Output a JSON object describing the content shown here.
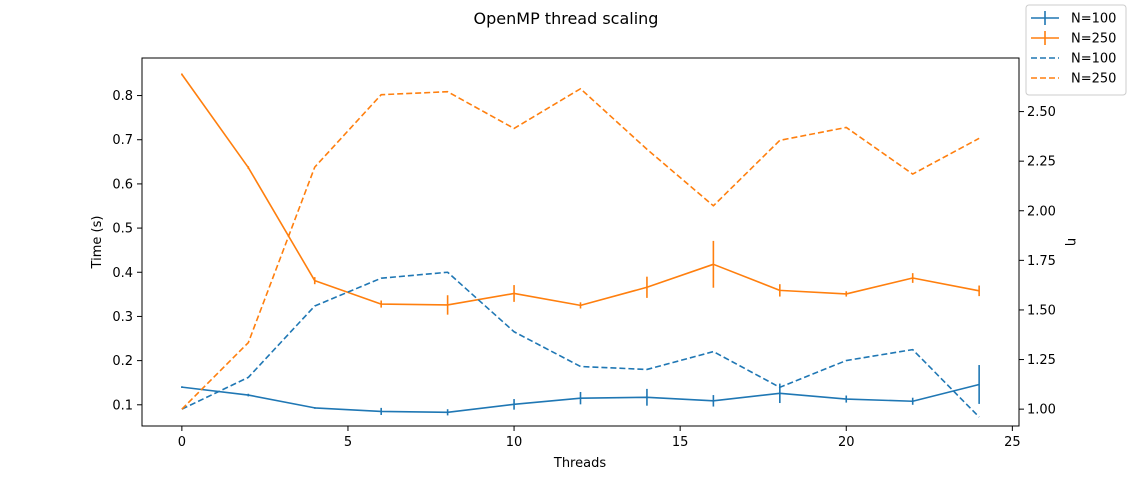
{
  "chart_data": {
    "type": "line",
    "title": "OpenMP thread scaling",
    "xlabel": "Threads",
    "ylabel_left": "Time (s)",
    "ylabel_right": "η",
    "xlim": [
      -1.2,
      25.2
    ],
    "ylim_left": [
      0.052,
      0.885
    ],
    "ylim_right": [
      0.915,
      2.77
    ],
    "x_ticks": [
      0,
      5,
      10,
      15,
      20,
      25
    ],
    "y_ticks_left": [
      0.1,
      0.2,
      0.3,
      0.4,
      0.5,
      0.6,
      0.7,
      0.8
    ],
    "y_ticks_right": [
      1.0,
      1.25,
      1.5,
      1.75,
      2.0,
      2.25,
      2.5
    ],
    "grid": false,
    "legend_position": "top-right",
    "colors": {
      "n100": "#1f77b4",
      "n250": "#ff7f0e"
    },
    "series": [
      {
        "name": "N=100",
        "axis": "left",
        "style": "solid-errorbar",
        "color": "#1f77b4",
        "x": [
          0,
          2,
          4,
          6,
          8,
          10,
          12,
          14,
          16,
          18,
          20,
          22,
          24
        ],
        "y": [
          0.14,
          0.122,
          0.093,
          0.085,
          0.083,
          0.101,
          0.115,
          0.117,
          0.109,
          0.126,
          0.113,
          0.108,
          0.146
        ],
        "yerr": [
          0.002,
          0.003,
          0.002,
          0.008,
          0.007,
          0.012,
          0.014,
          0.019,
          0.013,
          0.022,
          0.008,
          0.008,
          0.044
        ]
      },
      {
        "name": "N=250",
        "axis": "left",
        "style": "solid-errorbar",
        "color": "#ff7f0e",
        "x": [
          0,
          2,
          4,
          6,
          8,
          10,
          12,
          14,
          16,
          18,
          20,
          22,
          24
        ],
        "y": [
          0.848,
          0.637,
          0.381,
          0.328,
          0.326,
          0.352,
          0.325,
          0.366,
          0.418,
          0.359,
          0.351,
          0.387,
          0.358
        ],
        "yerr": [
          0.002,
          0.003,
          0.008,
          0.008,
          0.022,
          0.019,
          0.007,
          0.024,
          0.053,
          0.014,
          0.006,
          0.011,
          0.012
        ]
      },
      {
        "name": "N=100",
        "axis": "right",
        "style": "dashed",
        "color": "#1f77b4",
        "x": [
          0,
          2,
          4,
          6,
          8,
          10,
          12,
          14,
          16,
          18,
          20,
          22,
          24
        ],
        "y": [
          1.0,
          1.16,
          1.52,
          1.66,
          1.69,
          1.39,
          1.215,
          1.2,
          1.29,
          1.11,
          1.245,
          1.3,
          0.96
        ]
      },
      {
        "name": "N=250",
        "axis": "right",
        "style": "dashed",
        "color": "#ff7f0e",
        "x": [
          0,
          2,
          4,
          6,
          8,
          10,
          12,
          14,
          16,
          18,
          20,
          22,
          24
        ],
        "y": [
          1.0,
          1.335,
          2.22,
          2.585,
          2.6,
          2.415,
          2.615,
          2.31,
          2.025,
          2.355,
          2.42,
          2.185,
          2.365
        ]
      }
    ]
  }
}
